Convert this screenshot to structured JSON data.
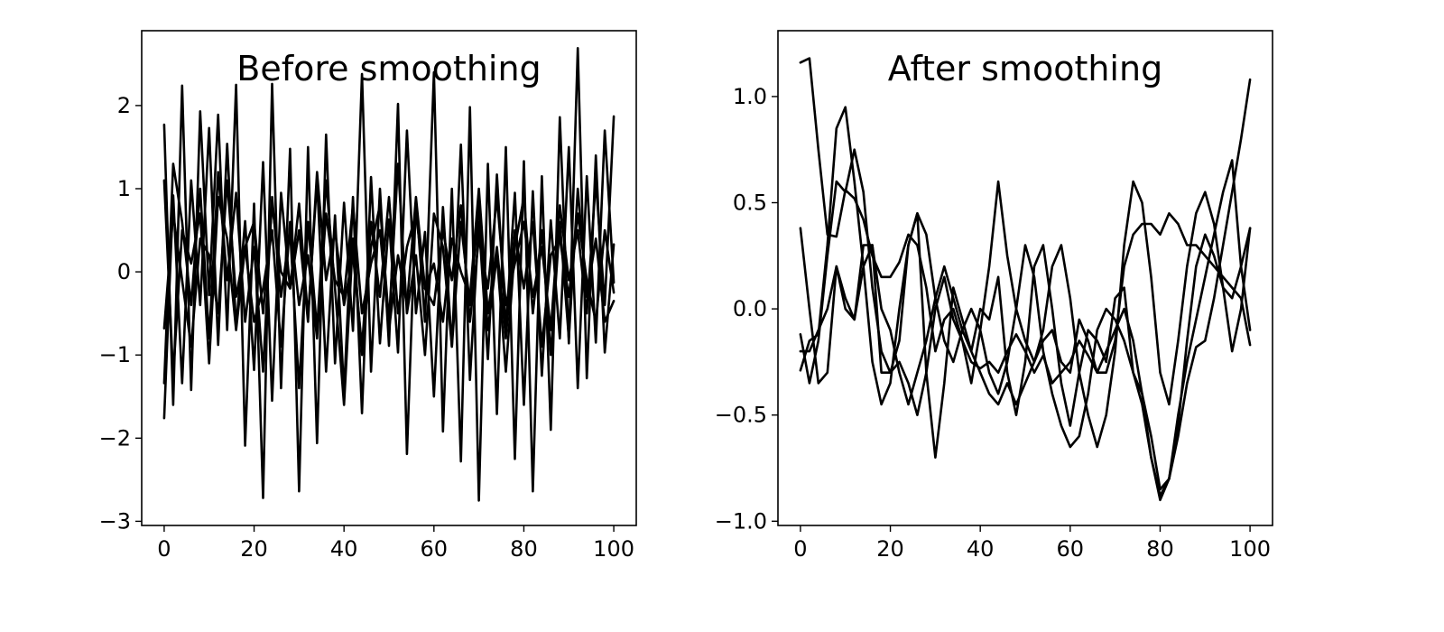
{
  "chart_data": [
    {
      "type": "line",
      "title": "Before smoothing",
      "xlabel": "",
      "ylabel": "",
      "xlim": [
        -5,
        105
      ],
      "ylim": [
        -3.05,
        2.9
      ],
      "xticks": [
        0,
        20,
        40,
        60,
        80,
        100
      ],
      "xtick_labels": [
        "0",
        "20",
        "40",
        "60",
        "80",
        "100"
      ],
      "yticks": [
        -3,
        -2,
        -1,
        0,
        1,
        2
      ],
      "ytick_labels": [
        "−3",
        "−2",
        "−1",
        "0",
        "1",
        "2"
      ],
      "grid": false,
      "line_color": "#000000",
      "x": [
        0,
        2,
        4,
        6,
        8,
        10,
        12,
        14,
        16,
        18,
        20,
        22,
        24,
        26,
        28,
        30,
        32,
        34,
        36,
        38,
        40,
        42,
        44,
        46,
        48,
        50,
        52,
        54,
        56,
        58,
        60,
        62,
        64,
        66,
        68,
        70,
        72,
        74,
        76,
        78,
        80,
        82,
        84,
        86,
        88,
        90,
        92,
        94,
        96,
        98,
        100
      ],
      "series": [
        {
          "values": [
            1.77,
            -1.6,
            2.24,
            -1.42,
            1.93,
            -0.28,
            1.89,
            -0.7,
            2.25,
            -2.09,
            0.82,
            -2.72,
            2.26,
            -1.4,
            1.48,
            -2.64,
            1.5,
            -2.06,
            1.65,
            -1.1,
            0.83,
            -0.71,
            2.38,
            -1.2,
            1.0,
            -0.89,
            2.02,
            -2.19,
            0.87,
            -0.6,
            2.4,
            -1.92,
            1.0,
            -2.28,
            1.98,
            -2.75,
            1.3,
            -1.71,
            1.5,
            -2.25,
            1.33,
            -2.64,
            1.15,
            -1.9,
            1.86,
            -0.86,
            2.69,
            -1.28,
            1.4,
            -0.97,
            0.33
          ]
        },
        {
          "values": [
            -1.76,
            0.92,
            -1.34,
            1.1,
            -0.4,
            1.73,
            -0.88,
            1.54,
            -0.67,
            0.61,
            -1.18,
            1.32,
            -1.55,
            0.95,
            -0.2,
            0.82,
            -0.55,
            1.1,
            -1.2,
            0.68,
            -1.45,
            0.9,
            -1.7,
            1.14,
            -0.86,
            0.63,
            -0.97,
            1.7,
            -0.5,
            0.48,
            -1.5,
            0.78,
            -0.9,
            1.53,
            -1.3,
            0.6,
            -1.05,
            1.17,
            -0.69,
            0.95,
            -1.6,
            0.97,
            -1.25,
            0.62,
            -0.8,
            1.5,
            -1.4,
            1.15,
            -0.85,
            1.7,
            -0.13
          ]
        },
        {
          "values": [
            -0.68,
            0.7,
            -0.1,
            -0.9,
            0.4,
            0.2,
            -0.5,
            1.1,
            -0.3,
            0.3,
            -0.6,
            -0.2,
            0.5,
            -0.9,
            0.6,
            -0.4,
            0.2,
            -0.8,
            0.7,
            -0.1,
            -0.3,
            0.8,
            -0.5,
            0.1,
            0.5,
            -0.7,
            0.2,
            -0.4,
            0.9,
            -0.2,
            0.1,
            -0.6,
            0.4,
            0.0,
            -0.3,
            1.0,
            -0.5,
            0.3,
            -0.8,
            0.5,
            -0.2,
            0.6,
            -0.9,
            0.2,
            0.4,
            -0.3,
            0.7,
            -0.1,
            -0.6,
            0.5,
            -0.25
          ]
        },
        {
          "values": [
            -1.34,
            1.3,
            0.6,
            -0.4,
            1.0,
            -0.8,
            1.2,
            -0.1,
            0.95,
            -0.6,
            0.3,
            -1.2,
            0.9,
            -0.3,
            0.5,
            -1.4,
            0.6,
            -0.7,
            1.1,
            -0.2,
            -1.6,
            0.4,
            -1.0,
            0.3,
            0.8,
            -0.6,
            1.3,
            -0.5,
            0.2,
            -1.0,
            0.7,
            0.3,
            -0.9,
            0.6,
            -0.4,
            0.8,
            -0.7,
            0.2,
            -1.2,
            0.3,
            0.9,
            -0.5,
            0.5,
            -1.0,
            0.6,
            -0.8,
            1.0,
            -0.3,
            0.4,
            -0.6,
            -0.35
          ]
        },
        {
          "values": [
            1.1,
            -1.25,
            0.5,
            0.1,
            0.7,
            -1.1,
            0.9,
            0.4,
            -0.7,
            0.3,
            0.6,
            -0.5,
            0.8,
            0.0,
            -0.2,
            0.5,
            -0.6,
            1.2,
            -0.1,
            0.5,
            -0.4,
            0.2,
            -0.9,
            0.6,
            -0.3,
            0.9,
            -0.5,
            0.3,
            0.7,
            -0.2,
            -0.4,
            0.5,
            -0.1,
            0.8,
            -0.6,
            0.4,
            -0.2,
            0.9,
            -0.4,
            0.1,
            0.6,
            -0.3,
            0.3,
            -0.7,
            0.8,
            -0.1,
            0.5,
            -0.5,
            1.1,
            -0.4,
            1.87
          ]
        }
      ]
    },
    {
      "type": "line",
      "title": "After smoothing",
      "xlabel": "",
      "ylabel": "",
      "xlim": [
        -5,
        105
      ],
      "ylim": [
        -1.02,
        1.31
      ],
      "xticks": [
        0,
        20,
        40,
        60,
        80,
        100
      ],
      "xtick_labels": [
        "0",
        "20",
        "40",
        "60",
        "80",
        "100"
      ],
      "yticks": [
        -1.0,
        -0.5,
        0.0,
        0.5,
        1.0
      ],
      "ytick_labels": [
        "−1.0",
        "−0.5",
        "0.0",
        "0.5",
        "1.0"
      ],
      "grid": false,
      "line_color": "#000000",
      "x": [
        0,
        2,
        4,
        6,
        8,
        10,
        12,
        14,
        16,
        18,
        20,
        22,
        24,
        26,
        28,
        30,
        32,
        34,
        36,
        38,
        40,
        42,
        44,
        46,
        48,
        50,
        52,
        54,
        56,
        58,
        60,
        62,
        64,
        66,
        68,
        70,
        72,
        74,
        76,
        78,
        80,
        82,
        84,
        86,
        88,
        90,
        92,
        94,
        96,
        98,
        100
      ],
      "series": [
        {
          "values": [
            1.16,
            1.18,
            0.75,
            0.35,
            0.34,
            0.56,
            0.52,
            0.42,
            0.25,
            0.15,
            0.15,
            0.22,
            0.35,
            0.3,
            0.1,
            -0.2,
            -0.05,
            0.0,
            -0.15,
            -0.25,
            -0.28,
            -0.25,
            -0.3,
            -0.2,
            -0.12,
            -0.2,
            -0.3,
            -0.22,
            -0.35,
            -0.3,
            -0.25,
            -0.15,
            -0.22,
            -0.3,
            -0.2,
            -0.1,
            0.0,
            -0.15,
            -0.4,
            -0.7,
            -0.9,
            -0.8,
            -0.6,
            -0.35,
            -0.18,
            -0.15,
            0.05,
            0.3,
            0.55,
            0.8,
            1.08
          ]
        },
        {
          "values": [
            -0.29,
            -0.15,
            -0.12,
            0.3,
            0.85,
            0.95,
            0.6,
            0.2,
            -0.25,
            -0.45,
            -0.35,
            0.0,
            0.3,
            0.45,
            0.35,
            0.05,
            -0.15,
            -0.25,
            -0.1,
            0.0,
            -0.1,
            -0.3,
            -0.4,
            -0.25,
            0.0,
            0.3,
            0.15,
            -0.2,
            -0.4,
            -0.55,
            -0.65,
            -0.6,
            -0.4,
            -0.1,
            0.0,
            -0.05,
            -0.15,
            -0.3,
            -0.45,
            -0.7,
            -0.88,
            -0.8,
            -0.5,
            -0.25,
            -0.05,
            0.15,
            0.35,
            0.55,
            0.7,
            0.2,
            -0.1
          ]
        },
        {
          "values": [
            -0.12,
            -0.35,
            -0.15,
            0.25,
            0.6,
            0.55,
            0.75,
            0.55,
            0.1,
            -0.2,
            -0.3,
            -0.25,
            -0.35,
            -0.5,
            -0.3,
            0.0,
            0.15,
            -0.05,
            -0.15,
            -0.35,
            -0.1,
            0.2,
            0.6,
            0.25,
            0.0,
            -0.15,
            -0.25,
            -0.1,
            0.2,
            0.3,
            0.05,
            -0.3,
            -0.5,
            -0.65,
            -0.5,
            -0.2,
            0.3,
            0.6,
            0.5,
            0.15,
            -0.3,
            -0.45,
            -0.15,
            0.2,
            0.45,
            0.55,
            0.4,
            0.1,
            -0.2,
            0.0,
            0.38
          ]
        },
        {
          "values": [
            0.38,
            0.0,
            -0.35,
            -0.3,
            0.2,
            0.0,
            -0.05,
            0.3,
            0.3,
            -0.3,
            -0.3,
            -0.15,
            0.3,
            0.45,
            -0.3,
            -0.7,
            -0.35,
            0.1,
            -0.05,
            -0.2,
            0.0,
            -0.05,
            0.15,
            -0.3,
            -0.5,
            -0.25,
            0.2,
            0.3,
            0.0,
            -0.35,
            -0.55,
            -0.3,
            -0.1,
            -0.15,
            -0.25,
            0.05,
            0.1,
            -0.3,
            -0.4,
            -0.6,
            -0.85,
            -0.8,
            -0.55,
            -0.15,
            0.2,
            0.35,
            0.25,
            0.1,
            0.05,
            0.2,
            0.38
          ]
        },
        {
          "values": [
            -0.2,
            -0.2,
            -0.1,
            0.0,
            0.2,
            0.05,
            -0.05,
            0.2,
            0.3,
            0.0,
            -0.1,
            -0.3,
            -0.45,
            -0.3,
            -0.15,
            0.05,
            0.2,
            0.05,
            -0.1,
            -0.2,
            -0.3,
            -0.4,
            -0.45,
            -0.35,
            -0.45,
            -0.35,
            -0.25,
            -0.15,
            -0.1,
            -0.25,
            -0.3,
            -0.05,
            -0.15,
            -0.3,
            -0.3,
            -0.15,
            0.2,
            0.35,
            0.4,
            0.4,
            0.35,
            0.45,
            0.4,
            0.3,
            0.3,
            0.25,
            0.2,
            0.15,
            0.1,
            0.05,
            -0.17
          ]
        }
      ]
    }
  ]
}
